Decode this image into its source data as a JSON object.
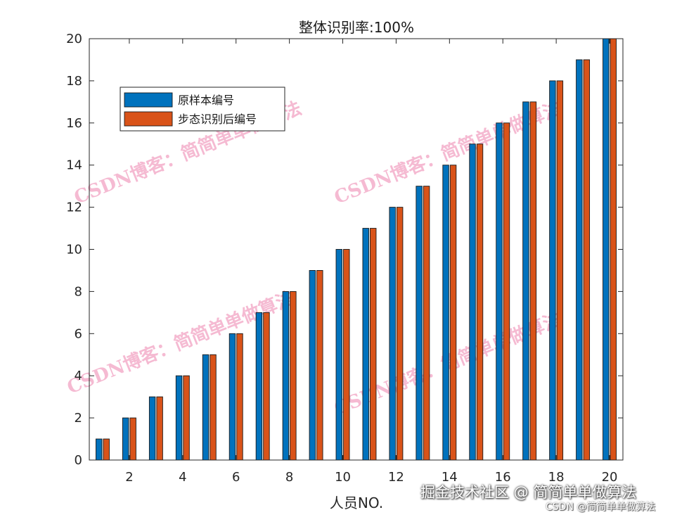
{
  "chart_data": {
    "type": "bar",
    "title": "整体识别率:100%",
    "xlabel": "人员NO.",
    "ylabel": "",
    "categories": [
      1,
      2,
      3,
      4,
      5,
      6,
      7,
      8,
      9,
      10,
      11,
      12,
      13,
      14,
      15,
      16,
      17,
      18,
      19,
      20
    ],
    "series": [
      {
        "name": "原样本编号",
        "color": "#0072BD",
        "values": [
          1,
          2,
          3,
          4,
          5,
          6,
          7,
          8,
          9,
          10,
          11,
          12,
          13,
          14,
          15,
          16,
          17,
          18,
          19,
          20
        ]
      },
      {
        "name": "步态识别后编号",
        "color": "#D95319",
        "values": [
          1,
          2,
          3,
          4,
          5,
          6,
          7,
          8,
          9,
          10,
          11,
          12,
          13,
          14,
          15,
          16,
          17,
          18,
          19,
          20
        ]
      }
    ],
    "ylim": [
      0,
      20
    ],
    "yticks": [
      0,
      2,
      4,
      6,
      8,
      10,
      12,
      14,
      16,
      18,
      20
    ],
    "xticks": [
      2,
      4,
      6,
      8,
      10,
      12,
      14,
      16,
      18,
      20
    ],
    "grid": false,
    "legend_position": "top-left"
  },
  "watermark": "CSDN博客：简简单单做算法",
  "footer": {
    "main": "掘金技术社区 @ 简简单单做算法",
    "sub": "CSDN @简简单单做算法"
  }
}
